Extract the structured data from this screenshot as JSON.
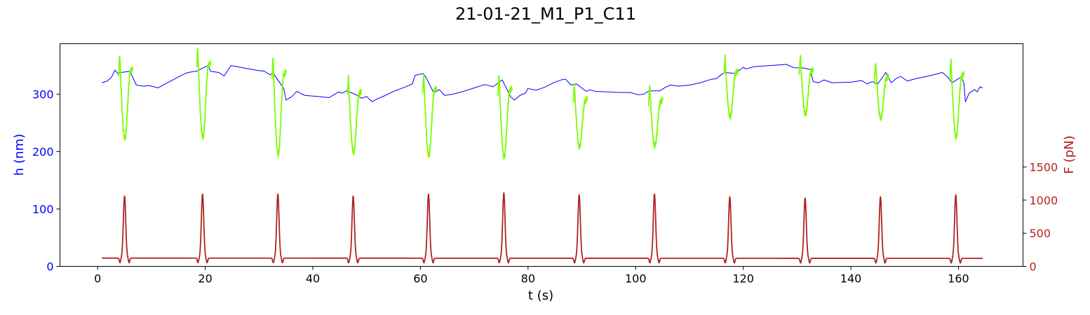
{
  "chart_data": {
    "type": "line",
    "title": "21-01-21_M1_P1_C11",
    "xlabel": "t (s)",
    "ylabel_left": "h (nm)",
    "ylabel_right": "F (pN)",
    "xlim": [
      -7,
      172
    ],
    "ylim_left": [
      0,
      388
    ],
    "ylim_right": [
      0,
      3360
    ],
    "x_ticks": [
      0,
      20,
      40,
      60,
      80,
      100,
      120,
      140,
      160
    ],
    "y_ticks_left": [
      0,
      100,
      200,
      300
    ],
    "y_ticks_right": [
      0,
      500,
      1000,
      1500
    ],
    "grid": false,
    "colors": {
      "height": "#0000ff",
      "height_compression": "#7cfc00",
      "force": "#b22222",
      "left_axis_text": "#0000ff",
      "right_axis_text": "#b22222"
    },
    "height_baseline_points": [
      [
        0.8,
        320
      ],
      [
        1.8,
        323
      ],
      [
        2.6,
        330
      ],
      [
        3.2,
        342
      ],
      [
        3.8,
        336
      ],
      [
        4.3,
        338
      ],
      [
        6.0,
        340
      ],
      [
        6.5,
        330
      ],
      [
        7.2,
        316
      ],
      [
        8.5,
        314
      ],
      [
        9.5,
        315
      ],
      [
        10.5,
        313
      ],
      [
        11.2,
        311
      ],
      [
        13.0,
        320
      ],
      [
        15.0,
        330
      ],
      [
        16.5,
        337
      ],
      [
        17.5,
        339
      ],
      [
        18.3,
        340
      ],
      [
        20.5,
        350
      ],
      [
        21.0,
        340
      ],
      [
        22.5,
        338
      ],
      [
        23.5,
        332
      ],
      [
        24.8,
        350
      ],
      [
        27.0,
        346
      ],
      [
        29.5,
        342
      ],
      [
        31.0,
        340
      ],
      [
        32.0,
        334
      ],
      [
        32.6,
        337
      ],
      [
        34.6,
        310
      ],
      [
        35.0,
        290
      ],
      [
        36.0,
        295
      ],
      [
        37.0,
        305
      ],
      [
        38.5,
        298
      ],
      [
        41.0,
        296
      ],
      [
        43.0,
        294
      ],
      [
        44.8,
        304
      ],
      [
        45.5,
        302
      ],
      [
        46.3,
        306
      ],
      [
        47.8,
        300
      ],
      [
        48.5,
        297
      ],
      [
        49.0,
        293
      ],
      [
        50.0,
        296
      ],
      [
        51.0,
        287
      ],
      [
        52.0,
        292
      ],
      [
        53.5,
        298
      ],
      [
        55.0,
        305
      ],
      [
        57.0,
        312
      ],
      [
        58.5,
        318
      ],
      [
        59.0,
        333
      ],
      [
        60.5,
        336
      ],
      [
        61.0,
        330
      ],
      [
        62.5,
        302
      ],
      [
        63.5,
        308
      ],
      [
        64.5,
        298
      ],
      [
        66.0,
        300
      ],
      [
        68.0,
        305
      ],
      [
        70.0,
        311
      ],
      [
        72.0,
        317
      ],
      [
        73.5,
        313
      ],
      [
        74.5,
        320
      ],
      [
        75.2,
        325
      ],
      [
        76.8,
        295
      ],
      [
        77.5,
        290
      ],
      [
        78.5,
        298
      ],
      [
        79.5,
        302
      ],
      [
        80.0,
        310
      ],
      [
        81.5,
        307
      ],
      [
        83.0,
        312
      ],
      [
        85.0,
        321
      ],
      [
        86.5,
        326
      ],
      [
        87.0,
        326
      ],
      [
        88.0,
        316
      ],
      [
        89.0,
        318
      ],
      [
        90.8,
        305
      ],
      [
        91.5,
        308
      ],
      [
        92.5,
        305
      ],
      [
        95.0,
        304
      ],
      [
        97.0,
        303
      ],
      [
        99.0,
        303
      ],
      [
        100.5,
        299
      ],
      [
        101.5,
        300
      ],
      [
        102.5,
        306
      ],
      [
        104.5,
        306
      ],
      [
        105.5,
        312
      ],
      [
        106.5,
        316
      ],
      [
        108.0,
        314
      ],
      [
        110.0,
        316
      ],
      [
        112.0,
        320
      ],
      [
        114.0,
        326
      ],
      [
        115.0,
        327
      ],
      [
        116.0,
        335
      ],
      [
        116.8,
        338
      ],
      [
        118.5,
        336
      ],
      [
        119.0,
        340
      ],
      [
        120.0,
        347
      ],
      [
        120.5,
        344
      ],
      [
        122.0,
        348
      ],
      [
        125.0,
        350
      ],
      [
        128.0,
        352
      ],
      [
        129.5,
        346
      ],
      [
        131.0,
        346
      ],
      [
        132.5,
        343
      ],
      [
        133.0,
        322
      ],
      [
        134.0,
        320
      ],
      [
        135.0,
        325
      ],
      [
        136.5,
        320
      ],
      [
        140.0,
        321
      ],
      [
        142.0,
        324
      ],
      [
        143.0,
        318
      ],
      [
        144.0,
        322
      ],
      [
        145.0,
        318
      ],
      [
        146.5,
        338
      ],
      [
        147.5,
        320
      ],
      [
        148.5,
        328
      ],
      [
        149.3,
        331
      ],
      [
        150.5,
        323
      ],
      [
        152.0,
        327
      ],
      [
        155.0,
        333
      ],
      [
        157.0,
        338
      ],
      [
        158.0,
        330
      ],
      [
        158.8,
        320
      ],
      [
        160.5,
        330
      ],
      [
        161.0,
        320
      ],
      [
        161.3,
        287
      ],
      [
        162.0,
        302
      ],
      [
        163.0,
        308
      ],
      [
        163.5,
        304
      ],
      [
        164.0,
        313
      ],
      [
        164.5,
        311
      ]
    ],
    "compression_events": [
      {
        "t": 5.0,
        "h_peak": 370,
        "h_min": 223,
        "f_peak": 1060
      },
      {
        "t": 19.5,
        "h_peak": 380,
        "h_min": 225,
        "f_peak": 1090
      },
      {
        "t": 33.5,
        "h_peak": 364,
        "h_min": 195,
        "f_peak": 1090
      },
      {
        "t": 47.5,
        "h_peak": 330,
        "h_min": 198,
        "f_peak": 1060
      },
      {
        "t": 61.5,
        "h_peak": 336,
        "h_min": 193,
        "f_peak": 1090
      },
      {
        "t": 75.5,
        "h_peak": 336,
        "h_min": 190,
        "f_peak": 1110
      },
      {
        "t": 89.5,
        "h_peak": 318,
        "h_min": 208,
        "f_peak": 1080
      },
      {
        "t": 103.5,
        "h_peak": 316,
        "h_min": 210,
        "f_peak": 1090
      },
      {
        "t": 117.5,
        "h_peak": 366,
        "h_min": 261,
        "f_peak": 1050
      },
      {
        "t": 131.5,
        "h_peak": 369,
        "h_min": 265,
        "f_peak": 1030
      },
      {
        "t": 145.5,
        "h_peak": 357,
        "h_min": 258,
        "f_peak": 1050
      },
      {
        "t": 159.5,
        "h_peak": 361,
        "h_min": 225,
        "f_peak": 1080
      }
    ],
    "force_baseline": 125,
    "force_baseline_end": 120,
    "t_start": 0.8,
    "t_end": 164.5
  }
}
